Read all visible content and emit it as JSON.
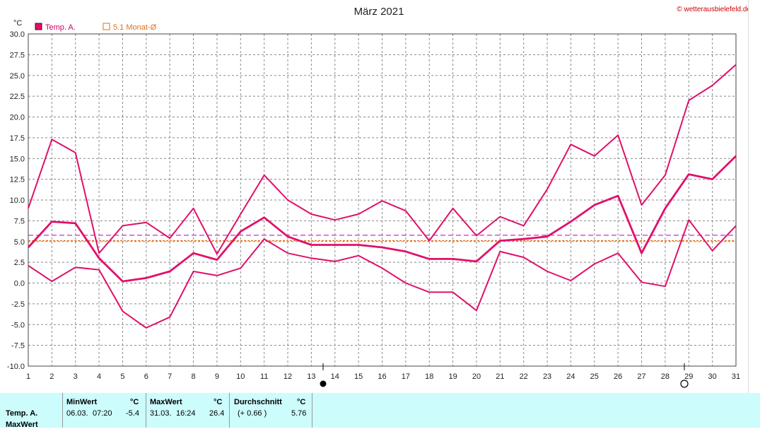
{
  "chart_data": {
    "type": "line",
    "title": "März 2021",
    "ylabel": "°C",
    "ylim": [
      -10,
      30
    ],
    "yticks": [
      "30.0",
      "27.5",
      "25.0",
      "22.5",
      "20.0",
      "17.5",
      "15.0",
      "12.5",
      "10.0",
      "7.5",
      "5.0",
      "2.5",
      "0.0",
      "-2.5",
      "-5.0",
      "-7.5",
      "-10.0"
    ],
    "x": [
      1,
      2,
      3,
      4,
      5,
      6,
      7,
      8,
      9,
      10,
      11,
      12,
      13,
      14,
      15,
      16,
      17,
      18,
      19,
      20,
      21,
      22,
      23,
      24,
      25,
      26,
      27,
      28,
      29,
      30,
      31
    ],
    "legend": [
      "Temp. A.",
      "5.1 Monat-Ø"
    ],
    "series": [
      {
        "role": "max",
        "color": "#e0106a",
        "values": [
          9.0,
          17.3,
          15.7,
          3.6,
          6.9,
          7.3,
          5.4,
          9.0,
          3.5,
          8.3,
          13.0,
          10.0,
          8.3,
          7.6,
          8.3,
          9.9,
          8.7,
          5.1,
          9.0,
          5.7,
          8.0,
          6.9,
          11.3,
          16.7,
          15.3,
          17.8,
          9.4,
          13.0,
          22.0,
          23.8,
          26.3
        ]
      },
      {
        "role": "avg",
        "color": "#e0106a",
        "values": [
          4.3,
          7.4,
          7.2,
          3.0,
          0.2,
          0.6,
          1.4,
          3.6,
          2.8,
          6.2,
          7.9,
          5.6,
          4.6,
          4.6,
          4.6,
          4.3,
          3.8,
          2.9,
          2.9,
          2.6,
          5.1,
          5.3,
          5.6,
          7.4,
          9.4,
          10.5,
          3.6,
          9.0,
          13.1,
          12.5,
          15.3
        ]
      },
      {
        "role": "min",
        "color": "#e0106a",
        "values": [
          2.1,
          0.2,
          1.9,
          1.6,
          -3.4,
          -5.4,
          -4.1,
          1.4,
          0.9,
          1.8,
          5.3,
          3.6,
          3.0,
          2.6,
          3.3,
          1.8,
          0.0,
          -1.1,
          -1.1,
          -3.3,
          3.8,
          3.1,
          1.4,
          0.3,
          2.3,
          3.6,
          0.1,
          -0.4,
          7.6,
          3.9,
          6.9
        ]
      }
    ],
    "reference_lines": [
      {
        "name": "5.1 Monat-Ø",
        "value": 5.1,
        "color": "#e0701a"
      },
      {
        "name": "Durchschnitt",
        "value": 5.76,
        "color": "#cc44cc"
      }
    ],
    "grid": true
  },
  "credit": "© wetterausbielefeld.de",
  "stats": {
    "row_label_1": "Temp. A.",
    "row_label_2": "MaxWert",
    "min_header": "MinWert",
    "min_unit": "°C",
    "min_date": "06.03.",
    "min_time": "07:20",
    "min_value": "-5.4",
    "max_header": "MaxWert",
    "max_unit": "°C",
    "max_date": "31.03.",
    "max_time": "16:24",
    "max_value": "26.4",
    "avg_header": "Durchschnitt",
    "avg_unit": "°C",
    "avg_delta": "(+ 0.66 )",
    "avg_value": "5.76"
  },
  "colors": {
    "series": "#e0106a",
    "monthavg": "#e0701a",
    "avgline": "#cc44cc",
    "stats_bg": "#ccfcfc"
  }
}
